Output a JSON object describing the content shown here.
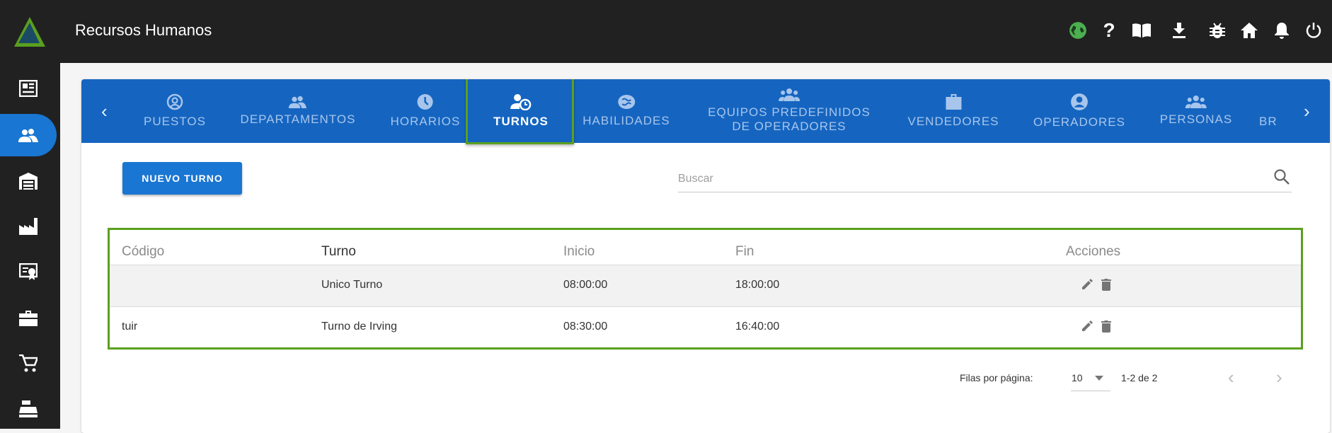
{
  "header": {
    "title": "Recursos Humanos",
    "icons": [
      "globe-icon",
      "help-icon",
      "book-icon",
      "download-icon",
      "bug-icon",
      "home-icon",
      "bell-icon",
      "power-icon"
    ],
    "globe_color": "#4caf50"
  },
  "sidebar": {
    "items": [
      "newspaper-icon",
      "people-icon",
      "warehouse-icon",
      "factory-icon",
      "badge-icon",
      "toolbox-icon",
      "cart-icon",
      "cash-register-icon"
    ],
    "active": 1,
    "active_color": "#1976d2"
  },
  "tabs": [
    {
      "label": "PUESTOS",
      "icon": "account-circle-icon"
    },
    {
      "label": "DEPARTAMENTOS",
      "icon": "people-icon"
    },
    {
      "label": "HORARIOS",
      "icon": "clock-icon"
    },
    {
      "label": "TURNOS",
      "icon": "person-clock-icon",
      "active": true
    },
    {
      "label": "HABILIDADES",
      "icon": "brain-icon"
    },
    {
      "label": "EQUIPOS PREDEFINIDOS",
      "label2": "DE OPERADORES",
      "icon": "groups-icon"
    },
    {
      "label": "VENDEDORES",
      "icon": "briefcase-icon"
    },
    {
      "label": "OPERADORES",
      "icon": "account-circle-icon"
    },
    {
      "label": "PERSONAS",
      "icon": "groups-icon"
    },
    {
      "label": "BR",
      "icon": ""
    }
  ],
  "toolbar": {
    "new_label": "NUEVO TURNO",
    "search_placeholder": "Buscar"
  },
  "table": {
    "headers": [
      "Código",
      "Turno",
      "Inicio",
      "Fin",
      "Acciones"
    ],
    "rows": [
      {
        "codigo": "",
        "turno": "Unico Turno",
        "inicio": "08:00:00",
        "fin": "18:00:00"
      },
      {
        "codigo": "tuir",
        "turno": "Turno de Irving",
        "inicio": "08:30:00",
        "fin": "16:40:00"
      }
    ]
  },
  "pagination": {
    "rows_label": "Filas por página:",
    "rows_value": "10",
    "range": "1-2 de 2"
  }
}
